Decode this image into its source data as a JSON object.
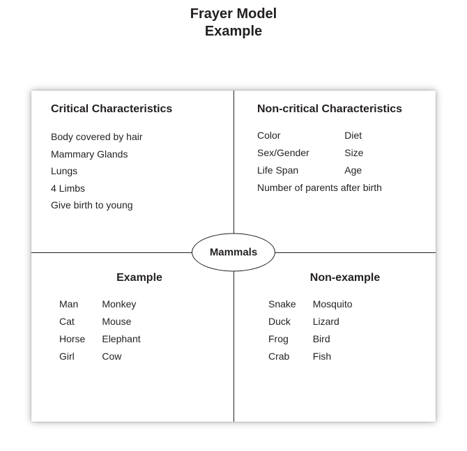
{
  "title": {
    "line1": "Frayer Model",
    "line2": "Example"
  },
  "center": "Mammals",
  "quads": {
    "tl": {
      "heading": "Critical Characteristics",
      "items": [
        "Body covered by hair",
        "Mammary Glands",
        "Lungs",
        "4 Limbs",
        "Give birth to young"
      ]
    },
    "tr": {
      "heading": "Non-critical Characteristics",
      "pairs": [
        [
          "Color",
          "Diet"
        ],
        [
          "Sex/Gender",
          "Size"
        ],
        [
          "Life Span",
          "Age"
        ]
      ],
      "full": "Number of parents after birth"
    },
    "bl": {
      "heading": "Example",
      "pairs": [
        [
          "Man",
          "Monkey"
        ],
        [
          "Cat",
          "Mouse"
        ],
        [
          "Horse",
          "Elephant"
        ],
        [
          "Girl",
          "Cow"
        ]
      ]
    },
    "br": {
      "heading": "Non-example",
      "pairs": [
        [
          "Snake",
          "Mosquito"
        ],
        [
          "Duck",
          "Lizard"
        ],
        [
          "Frog",
          "Bird"
        ],
        [
          "Crab",
          "Fish"
        ]
      ]
    }
  }
}
